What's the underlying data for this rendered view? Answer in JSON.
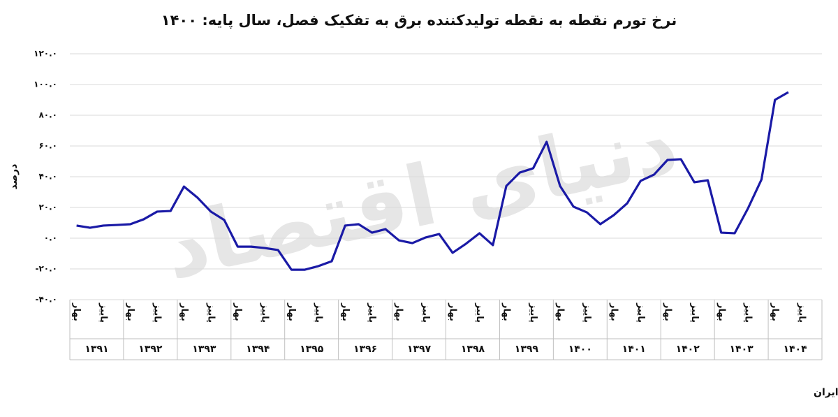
{
  "chart_data": {
    "type": "line",
    "title": "نرخ تورم نقطه به نقطه تولیدکننده برق به تفکیک فصل، سال پایه: ۱۴۰۰",
    "y_label": "درصد",
    "source": "منبع: مرکز آمار ایران",
    "watermark": "دنیای اقتصاد",
    "categories": [
      "بهار",
      null,
      "پاییز",
      null,
      "بهار",
      null,
      "پاییز",
      null,
      "بهار",
      null,
      "پاییز",
      null,
      "بهار",
      null,
      "پاییز",
      null,
      "بهار",
      null,
      "پاییز",
      null,
      "بهار",
      null,
      "پاییز",
      null,
      "بهار",
      null,
      "پاییز",
      null,
      "بهار",
      null,
      "پاییز",
      null,
      "بهار",
      null,
      "پاییز",
      null,
      "بهار",
      null,
      "پاییز",
      null,
      "بهار",
      null,
      "پاییز",
      null,
      "بهار",
      null,
      "پاییز",
      null,
      "بهار",
      null,
      "پاییز",
      null,
      "بهار",
      null,
      "پاییز",
      null
    ],
    "groups": [
      "۱۳۹۱",
      "۱۳۹۲",
      "۱۳۹۳",
      "۱۳۹۴",
      "۱۳۹۵",
      "۱۳۹۶",
      "۱۳۹۷",
      "۱۳۹۸",
      "۱۳۹۹",
      "۱۴۰۰",
      "۱۴۰۱",
      "۱۴۰۲",
      "۱۴۰۳",
      "۱۴۰۴"
    ],
    "values": [
      8.2,
      6.8,
      8.2,
      8.6,
      9.1,
      12.3,
      17.3,
      17.7,
      33.6,
      26.4,
      17.3,
      11.8,
      -5.5,
      -5.5,
      -6.4,
      -7.7,
      -20.5,
      -20.5,
      -18.2,
      -15,
      8.2,
      9.1,
      3.6,
      5.9,
      -1.4,
      -3.2,
      0.5,
      2.7,
      -9.5,
      -3.6,
      3.2,
      -4.5,
      34,
      42.7,
      45.5,
      62.7,
      34,
      20.5,
      16.8,
      9.1,
      15,
      22.7,
      37.3,
      41.4,
      50.9,
      51.4,
      36.4,
      37.7,
      3.6,
      3.2,
      19.5,
      38.2,
      90,
      95,
      null,
      null
    ],
    "color": "#1a1aa6",
    "ylim": [
      -40,
      120
    ],
    "yticks": [
      {
        "value": 120,
        "label": "۱۲۰.۰"
      },
      {
        "value": 100,
        "label": "۱۰۰.۰"
      },
      {
        "value": 80,
        "label": "۸۰.۰"
      },
      {
        "value": 60,
        "label": "۶۰.۰"
      },
      {
        "value": 40,
        "label": "۴۰.۰"
      },
      {
        "value": 20,
        "label": "۲۰.۰"
      },
      {
        "value": 0,
        "label": "۰.۰"
      },
      {
        "value": -20,
        "label": "-۲۰.۰"
      },
      {
        "value": -40,
        "label": "-۴۰.۰"
      }
    ],
    "grid": true
  }
}
